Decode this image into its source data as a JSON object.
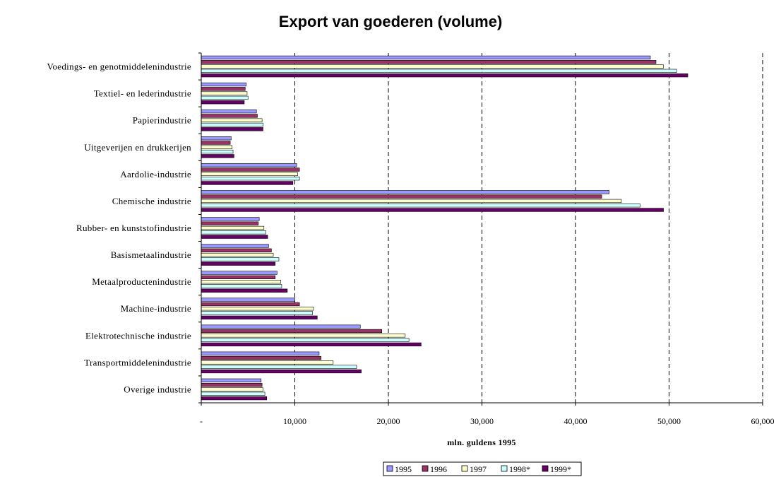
{
  "chart_data": {
    "type": "bar",
    "orientation": "horizontal",
    "title": "Export van goederen (volume)",
    "xlabel": "mln. guldens 1995",
    "ylabel": "",
    "xlim": [
      0,
      60000
    ],
    "x_ticks": [
      0,
      10000,
      20000,
      30000,
      40000,
      50000,
      60000
    ],
    "x_tick_labels": [
      "-",
      "10,000",
      "20,000",
      "30,000",
      "40,000",
      "50,000",
      "60,000"
    ],
    "grid": "vertical dashed",
    "legend_position": "bottom-right",
    "categories": [
      "Voedings- en genotmiddelenindustrie",
      "Textiel- en lederindustrie",
      "Papierindustrie",
      "Uitgeverijen en drukkerijen",
      "Aardolie-industrie",
      "Chemische industrie",
      "Rubber- en kunststofindustrie",
      "Basismetaalindustrie",
      "Metaalproductenindustrie",
      "Machine-industrie",
      "Elektrotechnische industrie",
      "Transportmiddelenindustrie",
      "Overige industrie"
    ],
    "series": [
      {
        "name": "1995",
        "color": "#9999FF",
        "values": [
          48000,
          4800,
          5900,
          3200,
          10200,
          43600,
          6200,
          7200,
          8100,
          10000,
          17000,
          12600,
          6400
        ]
      },
      {
        "name": "1996",
        "color": "#993366",
        "values": [
          48600,
          4700,
          6000,
          3100,
          10500,
          42800,
          6100,
          7500,
          7900,
          10500,
          19300,
          12800,
          6500
        ]
      },
      {
        "name": "1997",
        "color": "#FFFFCC",
        "values": [
          49400,
          4900,
          6500,
          3300,
          10300,
          44900,
          6700,
          7700,
          8500,
          12000,
          21800,
          14100,
          6600
        ]
      },
      {
        "name": "1998*",
        "color": "#CCFFFF",
        "values": [
          50800,
          5000,
          6600,
          3400,
          10500,
          46900,
          6900,
          8300,
          8600,
          11900,
          22200,
          16600,
          6800
        ]
      },
      {
        "name": "1999*",
        "color": "#660066",
        "values": [
          52000,
          4600,
          6600,
          3500,
          9800,
          49400,
          7100,
          7900,
          9200,
          12400,
          23500,
          17100,
          7000
        ]
      }
    ]
  }
}
